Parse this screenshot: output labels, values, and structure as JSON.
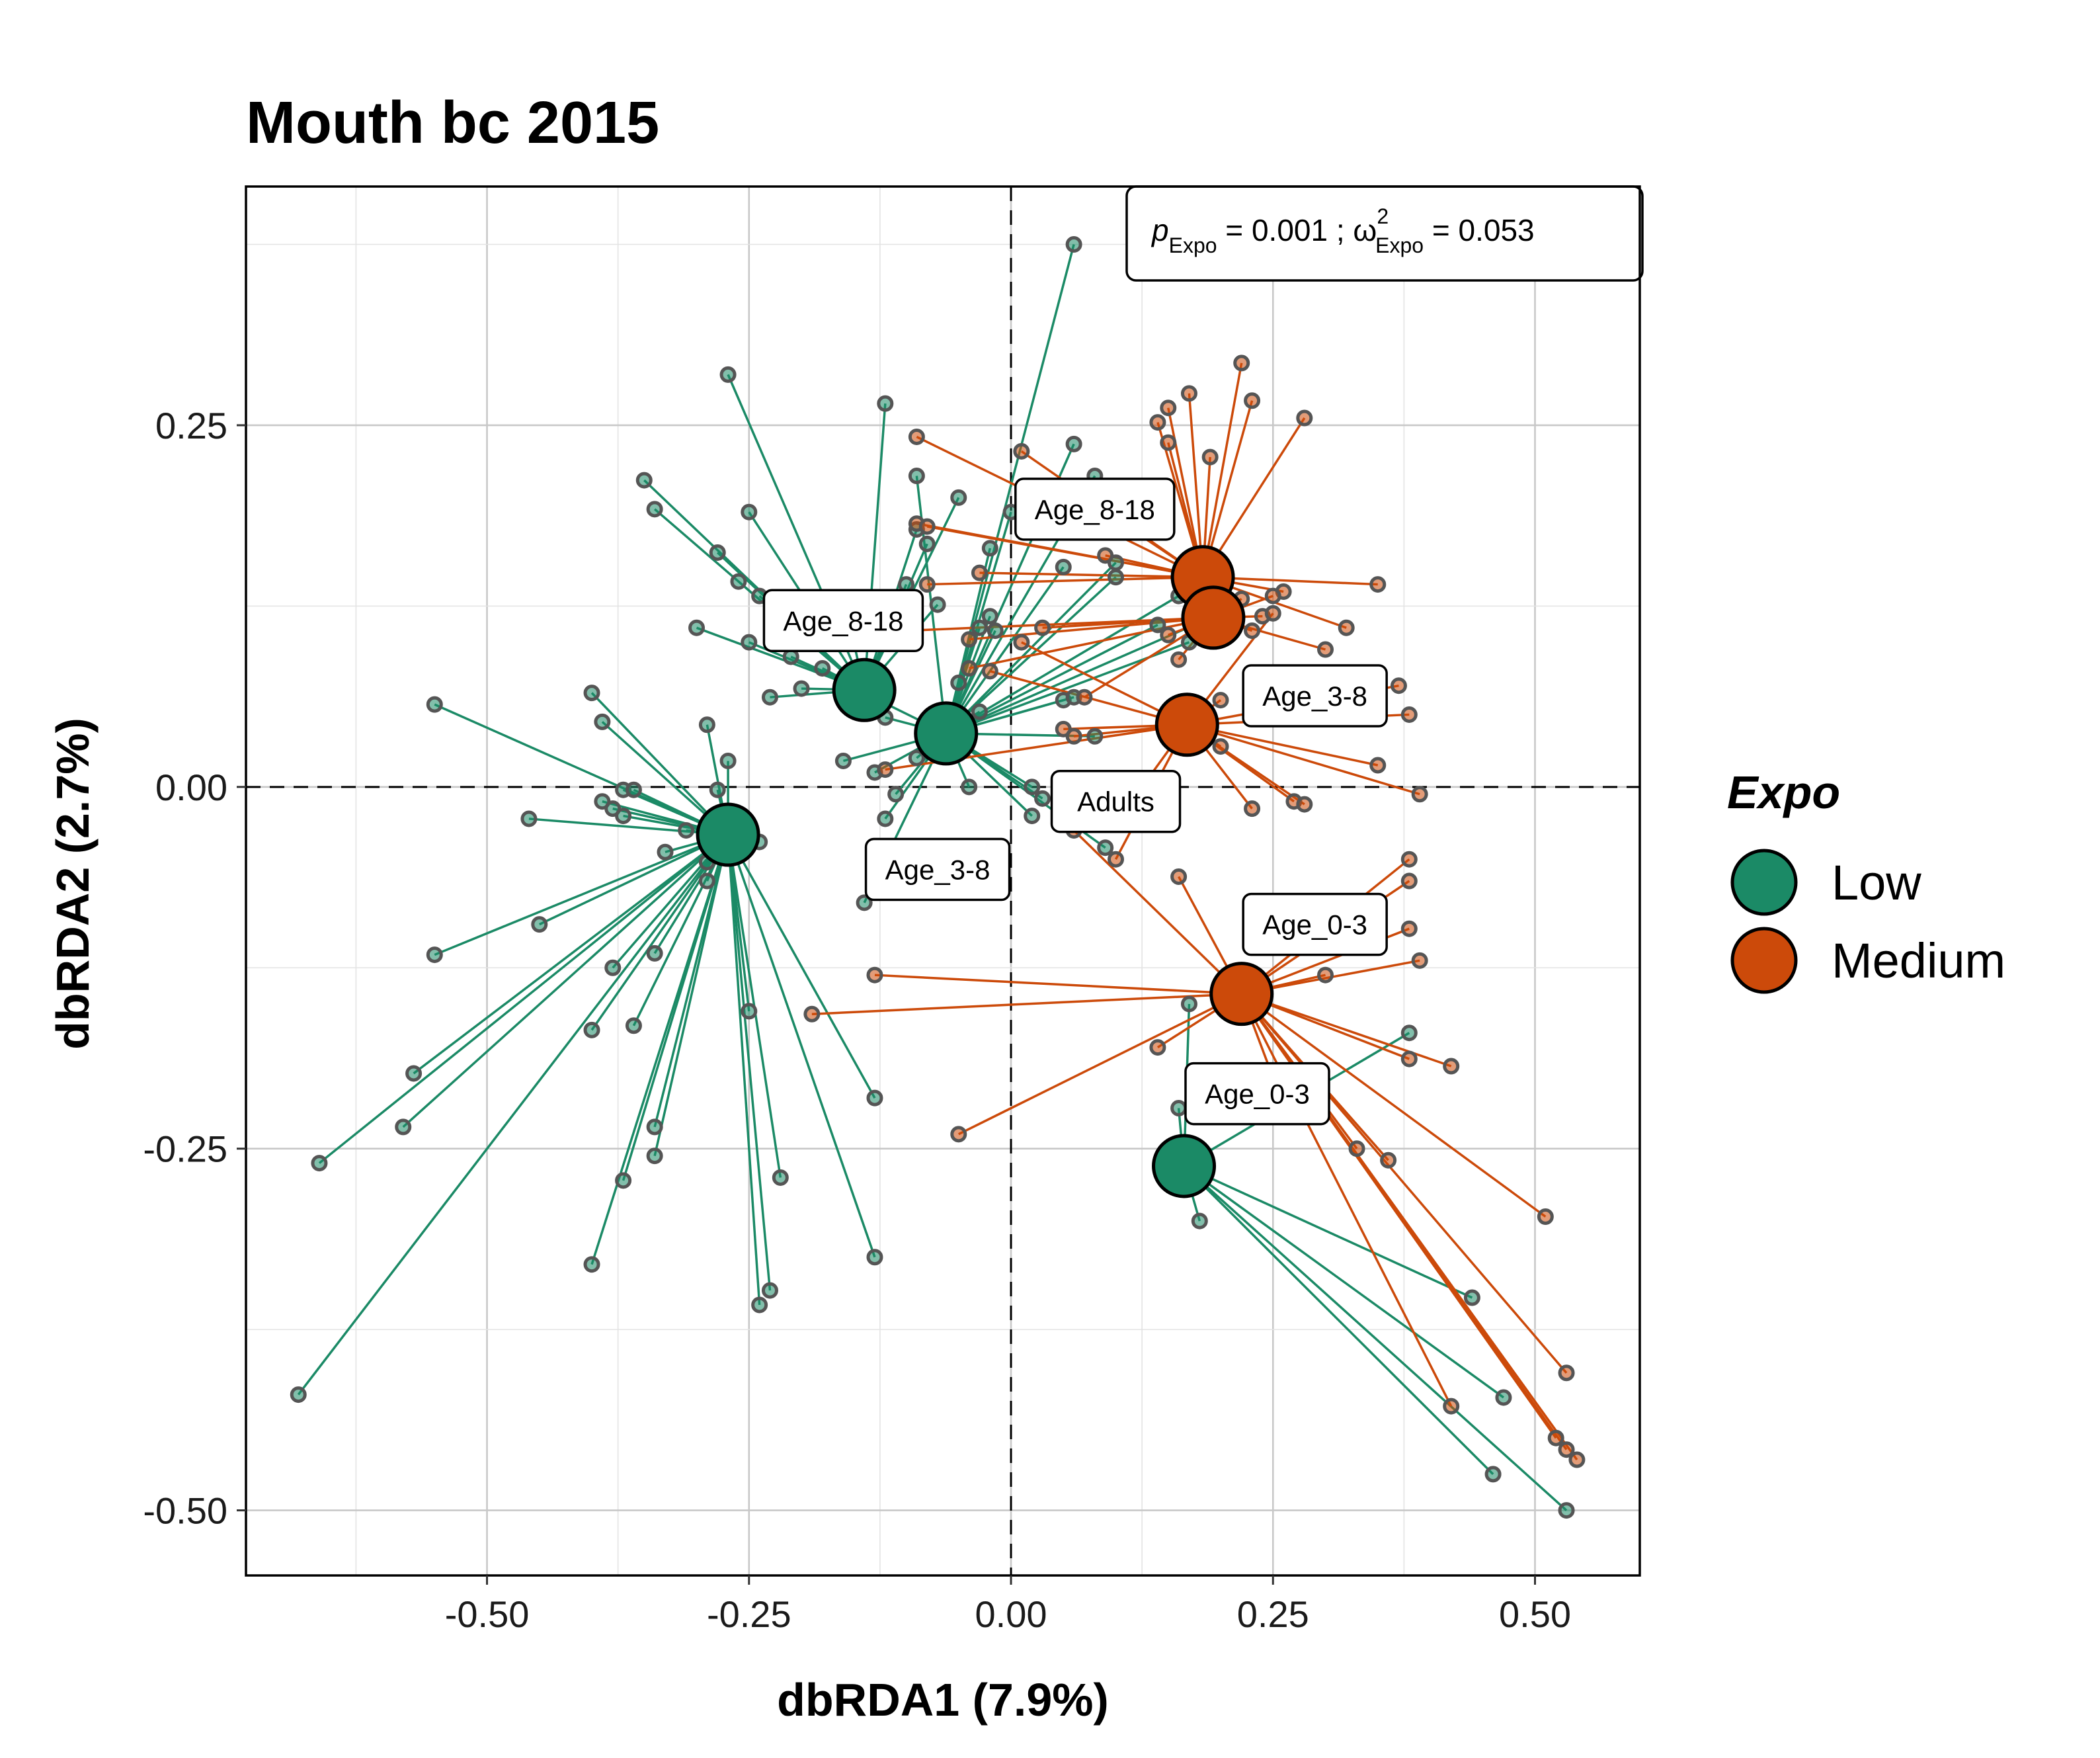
{
  "colors": {
    "Low": "#1B8A66",
    "Medium": "#CC4A0A",
    "point_stroke": "#555555",
    "centroid_stroke": "#000000"
  },
  "chart_data": {
    "type": "scatter",
    "title": "Mouth bc 2015",
    "xlabel": "dbRDA1 (7.9%)",
    "ylabel": "dbRDA2 (2.7%)",
    "xlim": [
      -0.73,
      0.6
    ],
    "ylim": [
      -0.545,
      0.415
    ],
    "x_ticks": [
      -0.5,
      -0.25,
      0.0,
      0.25,
      0.5
    ],
    "x_tick_labels": [
      "-0.50",
      "-0.25",
      "0.00",
      "0.25",
      "0.50"
    ],
    "y_ticks": [
      -0.5,
      -0.25,
      0.0,
      0.25
    ],
    "y_tick_labels": [
      "-0.50",
      "-0.25",
      "0.00",
      "0.25"
    ],
    "grid": true,
    "reference_lines": {
      "x": 0,
      "y": 0
    },
    "annotation": {
      "p_symbol": "p",
      "p_subscript": "Expo",
      "p_value": " = 0.001 ; ",
      "omega_symbol": "ω",
      "omega_superscript": "2",
      "omega_subscript": "Expo",
      "omega_value": " = 0.053"
    },
    "legend": {
      "title": "Expo",
      "position": "right",
      "entries": [
        {
          "label": "Low",
          "group": "Low"
        },
        {
          "label": "Medium",
          "group": "Medium"
        }
      ]
    },
    "groups": [
      {
        "expo": "Low",
        "age": "Age_8-18",
        "centroid": [
          -0.14,
          0.067
        ],
        "label_at": [
          -0.16,
          0.115
        ],
        "points": [
          [
            -0.35,
            0.212
          ],
          [
            -0.34,
            0.192
          ],
          [
            -0.27,
            0.285
          ],
          [
            -0.12,
            0.265
          ],
          [
            -0.25,
            0.19
          ],
          [
            -0.28,
            0.162
          ],
          [
            -0.26,
            0.142
          ],
          [
            -0.24,
            0.132
          ],
          [
            -0.25,
            0.1
          ],
          [
            -0.21,
            0.09
          ],
          [
            -0.18,
            0.082
          ],
          [
            -0.15,
            0.1
          ],
          [
            -0.1,
            0.14
          ],
          [
            -0.08,
            0.168
          ],
          [
            -0.11,
            0.118
          ],
          [
            -0.07,
            0.126
          ],
          [
            -0.09,
            0.178
          ],
          [
            -0.05,
            0.2
          ],
          [
            -0.23,
            0.062
          ],
          [
            -0.2,
            0.068
          ],
          [
            -0.3,
            0.11
          ]
        ]
      },
      {
        "expo": "Low",
        "age": "Adults",
        "centroid": [
          -0.062,
          0.037
        ],
        "label_at": [
          0.1,
          -0.01
        ],
        "points": [
          [
            0.06,
            0.375
          ],
          [
            -0.09,
            0.215
          ],
          [
            0.0,
            0.19
          ],
          [
            0.06,
            0.237
          ],
          [
            0.08,
            0.215
          ],
          [
            -0.02,
            0.165
          ],
          [
            0.05,
            0.152
          ],
          [
            0.1,
            0.155
          ],
          [
            0.1,
            0.145
          ],
          [
            0.16,
            0.132
          ],
          [
            0.14,
            0.112
          ],
          [
            0.17,
            0.1
          ],
          [
            0.2,
            0.12
          ],
          [
            -0.03,
            0.11
          ],
          [
            -0.02,
            0.118
          ],
          [
            -0.015,
            0.108
          ],
          [
            0.05,
            0.06
          ],
          [
            0.06,
            0.062
          ],
          [
            0.08,
            0.035
          ],
          [
            -0.04,
            0.0
          ],
          [
            0.09,
            -0.042
          ],
          [
            0.02,
            0.0
          ],
          [
            0.03,
            -0.008
          ],
          [
            0.02,
            -0.02
          ],
          [
            -0.05,
            0.072
          ],
          [
            -0.03,
            0.052
          ],
          [
            -0.12,
            0.048
          ],
          [
            -0.16,
            0.072
          ],
          [
            -0.09,
            0.02
          ],
          [
            -0.16,
            0.018
          ],
          [
            -0.13,
            0.01
          ],
          [
            -0.11,
            -0.005
          ],
          [
            -0.12,
            -0.022
          ],
          [
            -0.14,
            -0.08
          ]
        ]
      },
      {
        "expo": "Low",
        "age": "Age_3-8",
        "centroid": [
          -0.27,
          -0.033
        ],
        "label_at": [
          -0.07,
          -0.057
        ],
        "points": [
          [
            -0.55,
            0.057
          ],
          [
            -0.4,
            0.065
          ],
          [
            -0.39,
            0.045
          ],
          [
            -0.37,
            -0.002
          ],
          [
            -0.36,
            -0.002
          ],
          [
            -0.39,
            -0.01
          ],
          [
            -0.38,
            -0.015
          ],
          [
            -0.37,
            -0.02
          ],
          [
            -0.46,
            -0.022
          ],
          [
            -0.29,
            0.043
          ],
          [
            -0.27,
            0.018
          ],
          [
            -0.28,
            -0.002
          ],
          [
            -0.24,
            -0.038
          ],
          [
            -0.29,
            -0.052
          ],
          [
            -0.29,
            -0.065
          ],
          [
            -0.45,
            -0.095
          ],
          [
            -0.55,
            -0.116
          ],
          [
            -0.38,
            -0.125
          ],
          [
            -0.34,
            -0.115
          ],
          [
            -0.4,
            -0.168
          ],
          [
            -0.36,
            -0.165
          ],
          [
            -0.57,
            -0.198
          ],
          [
            -0.58,
            -0.235
          ],
          [
            -0.66,
            -0.26
          ],
          [
            -0.34,
            -0.235
          ],
          [
            -0.34,
            -0.255
          ],
          [
            -0.37,
            -0.272
          ],
          [
            -0.4,
            -0.33
          ],
          [
            -0.25,
            -0.155
          ],
          [
            -0.24,
            -0.358
          ],
          [
            -0.23,
            -0.348
          ],
          [
            -0.22,
            -0.27
          ],
          [
            -0.13,
            -0.325
          ],
          [
            -0.13,
            -0.215
          ],
          [
            -0.68,
            -0.42
          ],
          [
            -0.33,
            -0.045
          ],
          [
            -0.31,
            -0.03
          ]
        ]
      },
      {
        "expo": "Low",
        "age": "Age_0-3",
        "centroid": [
          0.165,
          -0.262
        ],
        "label_at": [
          0.235,
          -0.212
        ],
        "points": [
          [
            0.18,
            -0.3
          ],
          [
            0.16,
            -0.222
          ],
          [
            0.17,
            -0.15
          ],
          [
            0.44,
            -0.353
          ],
          [
            0.47,
            -0.422
          ],
          [
            0.46,
            -0.475
          ],
          [
            0.53,
            -0.5
          ],
          [
            0.38,
            -0.17
          ]
        ]
      },
      {
        "expo": "Medium",
        "age": "Age_8-18",
        "centroid": [
          0.183,
          0.145
        ],
        "label_at": [
          0.08,
          0.192
        ],
        "points": [
          [
            0.22,
            0.293
          ],
          [
            0.17,
            0.272
          ],
          [
            0.23,
            0.267
          ],
          [
            0.28,
            0.255
          ],
          [
            0.15,
            0.262
          ],
          [
            0.14,
            0.252
          ],
          [
            0.15,
            0.238
          ],
          [
            0.19,
            0.228
          ],
          [
            -0.09,
            0.242
          ],
          [
            0.01,
            0.232
          ],
          [
            -0.09,
            0.182
          ],
          [
            -0.08,
            0.18
          ],
          [
            0.08,
            0.195
          ],
          [
            0.09,
            0.16
          ],
          [
            0.26,
            0.135
          ],
          [
            0.35,
            0.14
          ],
          [
            0.32,
            0.11
          ],
          [
            -0.03,
            0.148
          ],
          [
            -0.08,
            0.14
          ]
        ]
      },
      {
        "expo": "Medium",
        "age": "Age_8-18",
        "centroid": [
          0.193,
          0.117
        ],
        "label_at": null,
        "points": [
          [
            0.22,
            0.13
          ],
          [
            0.25,
            0.132
          ],
          [
            0.24,
            0.118
          ],
          [
            0.23,
            0.108
          ],
          [
            0.3,
            0.095
          ],
          [
            0.15,
            0.105
          ],
          [
            0.16,
            0.088
          ],
          [
            -0.1,
            0.108
          ],
          [
            -0.04,
            0.102
          ],
          [
            0.03,
            0.11
          ],
          [
            0.07,
            0.062
          ],
          [
            -0.04,
            0.082
          ]
        ]
      },
      {
        "expo": "Medium",
        "age": "Age_3-8",
        "centroid": [
          0.168,
          0.043
        ],
        "label_at": [
          0.29,
          0.063
        ],
        "points": [
          [
            0.37,
            0.07
          ],
          [
            0.38,
            0.05
          ],
          [
            0.39,
            -0.005
          ],
          [
            0.35,
            0.015
          ],
          [
            0.27,
            -0.01
          ],
          [
            0.28,
            -0.012
          ],
          [
            0.23,
            -0.015
          ],
          [
            0.2,
            0.06
          ],
          [
            0.2,
            0.028
          ],
          [
            0.25,
            0.12
          ],
          [
            -0.12,
            0.012
          ],
          [
            0.05,
            0.04
          ],
          [
            0.06,
            0.035
          ],
          [
            -0.02,
            0.08
          ],
          [
            0.01,
            0.1
          ],
          [
            0.1,
            -0.025
          ],
          [
            0.1,
            -0.05
          ]
        ]
      },
      {
        "expo": "Medium",
        "age": "Age_0-3",
        "centroid": [
          0.22,
          -0.143
        ],
        "label_at": [
          0.29,
          -0.095
        ],
        "points": [
          [
            0.38,
            -0.05
          ],
          [
            0.38,
            -0.065
          ],
          [
            0.38,
            -0.098
          ],
          [
            0.39,
            -0.12
          ],
          [
            0.42,
            -0.193
          ],
          [
            0.38,
            -0.188
          ],
          [
            0.3,
            -0.13
          ],
          [
            0.26,
            -0.22
          ],
          [
            0.33,
            -0.25
          ],
          [
            0.36,
            -0.258
          ],
          [
            0.51,
            -0.297
          ],
          [
            0.53,
            -0.405
          ],
          [
            0.52,
            -0.45
          ],
          [
            0.53,
            -0.458
          ],
          [
            0.54,
            -0.465
          ],
          [
            0.42,
            -0.428
          ],
          [
            0.16,
            -0.062
          ],
          [
            0.06,
            -0.03
          ],
          [
            0.14,
            -0.18
          ],
          [
            -0.13,
            -0.13
          ],
          [
            -0.19,
            -0.157
          ],
          [
            -0.05,
            -0.24
          ]
        ]
      }
    ]
  }
}
